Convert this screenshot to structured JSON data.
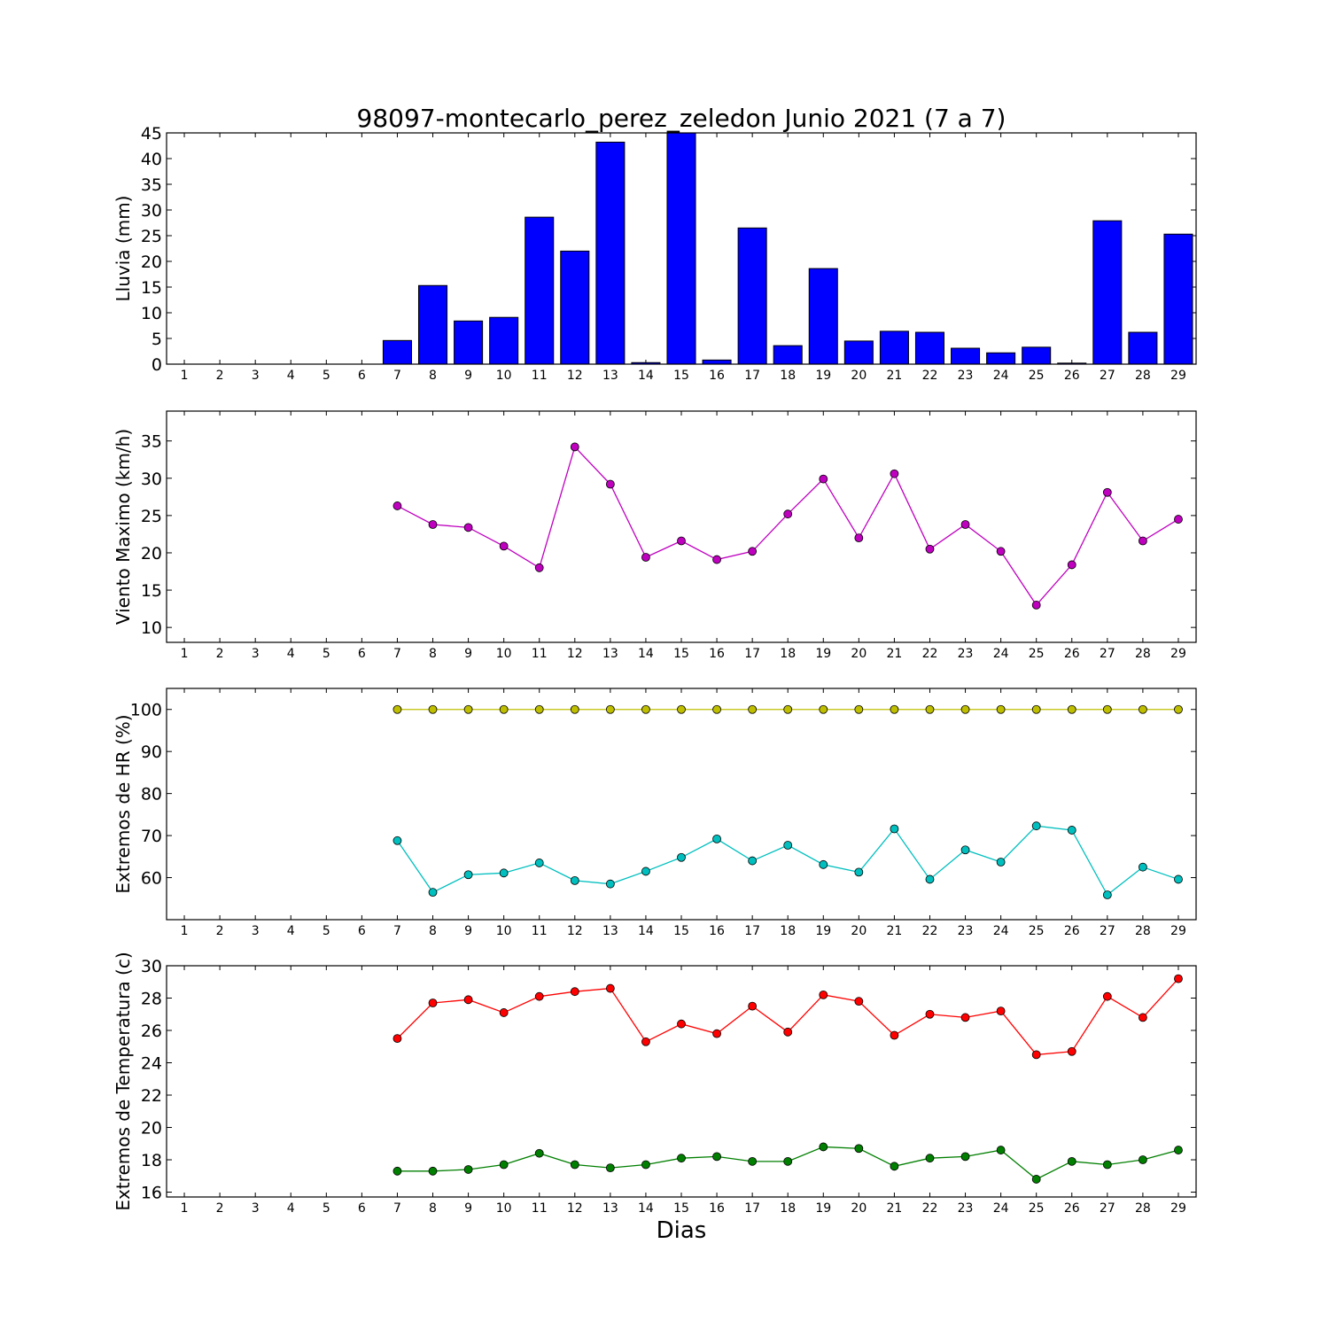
{
  "chart_data": {
    "title": "98097-montecarlo_perez_zeledon Junio 2021  (7 a 7)",
    "xlabel": "Dias",
    "x": [
      1,
      2,
      3,
      4,
      5,
      6,
      7,
      8,
      9,
      10,
      11,
      12,
      13,
      14,
      15,
      16,
      17,
      18,
      19,
      20,
      21,
      22,
      23,
      24,
      25,
      26,
      27,
      28,
      29
    ],
    "panels": [
      {
        "type": "bar",
        "ylabel": "Lluvia (mm)",
        "ylim": [
          0,
          45
        ],
        "yticks": [
          0,
          5,
          10,
          15,
          20,
          25,
          30,
          35,
          40,
          45
        ],
        "series": [
          {
            "color": "#0000ff",
            "values": [
              null,
              null,
              null,
              null,
              null,
              null,
              4.6,
              15.3,
              8.4,
              9.1,
              28.6,
              22.0,
              43.2,
              0.3,
              45.0,
              0.8,
              26.5,
              3.6,
              18.6,
              4.5,
              6.4,
              6.2,
              3.1,
              2.2,
              3.3,
              0.2,
              27.9,
              6.2,
              25.3
            ]
          }
        ]
      },
      {
        "type": "line",
        "ylabel": "Viento Maximo (km/h)",
        "ylim": [
          8,
          39
        ],
        "yticks": [
          10,
          15,
          20,
          25,
          30,
          35
        ],
        "series": [
          {
            "color": "#bf00bf",
            "values": [
              null,
              null,
              null,
              null,
              null,
              null,
              26.3,
              23.8,
              23.4,
              20.9,
              18.0,
              34.2,
              29.2,
              19.4,
              21.6,
              19.1,
              20.2,
              25.2,
              29.9,
              22.0,
              30.6,
              20.5,
              23.8,
              20.2,
              13.0,
              18.4,
              28.1,
              21.6,
              24.5
            ]
          }
        ]
      },
      {
        "type": "line",
        "ylabel": "Extremos de HR (%)",
        "ylim": [
          50,
          105
        ],
        "yticks": [
          60,
          70,
          80,
          90,
          100
        ],
        "series": [
          {
            "color": "#bfbf00",
            "values": [
              null,
              null,
              null,
              null,
              null,
              null,
              100,
              100,
              100,
              100,
              100,
              100,
              100,
              100,
              100,
              100,
              100,
              100,
              100,
              100,
              100,
              100,
              100,
              100,
              100,
              100,
              100,
              100,
              100
            ]
          },
          {
            "color": "#00bfbf",
            "values": [
              null,
              null,
              null,
              null,
              null,
              null,
              68.8,
              56.5,
              60.7,
              61.1,
              63.5,
              59.3,
              58.5,
              61.5,
              64.8,
              69.2,
              64.0,
              67.7,
              63.1,
              61.3,
              71.6,
              59.6,
              66.6,
              63.7,
              72.3,
              71.3,
              55.9,
              62.5,
              59.6
            ]
          }
        ]
      },
      {
        "type": "line",
        "ylabel": "Extremos de Temperatura (c)",
        "ylim": [
          15.7,
          30.0
        ],
        "yticks": [
          16,
          18,
          20,
          22,
          24,
          26,
          28,
          30
        ],
        "series": [
          {
            "color": "#ff0000",
            "values": [
              null,
              null,
              null,
              null,
              null,
              null,
              25.5,
              27.7,
              27.9,
              27.1,
              28.1,
              28.4,
              28.6,
              25.3,
              26.4,
              25.8,
              27.5,
              25.9,
              28.2,
              27.8,
              25.7,
              27.0,
              26.8,
              27.2,
              24.5,
              24.7,
              28.1,
              26.8,
              29.2
            ]
          },
          {
            "color": "#007f00",
            "values": [
              null,
              null,
              null,
              null,
              null,
              null,
              17.3,
              17.3,
              17.4,
              17.7,
              18.4,
              17.7,
              17.5,
              17.7,
              18.1,
              18.2,
              17.9,
              17.9,
              18.8,
              18.7,
              17.6,
              18.1,
              18.2,
              18.6,
              16.8,
              17.9,
              17.7,
              18.0,
              18.6
            ]
          }
        ]
      }
    ]
  }
}
